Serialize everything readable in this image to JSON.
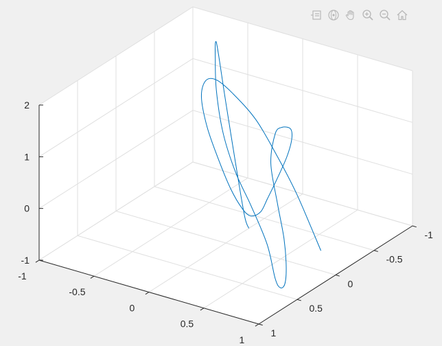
{
  "toolbar": {
    "buttons": [
      {
        "name": "data-tips-icon"
      },
      {
        "name": "rotate-3d-icon"
      },
      {
        "name": "pan-hand-icon"
      },
      {
        "name": "zoom-in-icon"
      },
      {
        "name": "zoom-out-icon"
      },
      {
        "name": "restore-view-home-icon"
      }
    ]
  },
  "colors": {
    "background": "#f0f0f0",
    "plot_area": "#ffffff",
    "grid": "#dfdfdf",
    "axis": "#262626",
    "line": "#0072bd"
  },
  "chart_data": {
    "type": "line",
    "dimensions": 3,
    "title": "",
    "xlabel": "",
    "ylabel": "",
    "zlabel": "",
    "grid": true,
    "box": true,
    "xlim": [
      -1,
      1
    ],
    "ylim": [
      -1,
      1
    ],
    "zlim": [
      -1,
      2
    ],
    "x_ticks": [
      -1,
      -0.5,
      0,
      0.5,
      1
    ],
    "x_tick_labels": [
      "-1",
      "-0.5",
      "0",
      "0.5",
      "1"
    ],
    "y_ticks": [
      -1,
      -0.5,
      0,
      0.5,
      1
    ],
    "y_tick_labels": [
      "-1",
      "-0.5",
      "0",
      "0.5",
      "1"
    ],
    "z_ticks": [
      -1,
      0,
      1,
      2
    ],
    "z_tick_labels": [
      "-1",
      "0",
      "1",
      "2"
    ],
    "series": [
      {
        "points": [
          [
            0.67,
            -0.28,
            -1.0
          ],
          [
            0.58,
            -0.28,
            -0.6
          ],
          [
            0.45,
            -0.27,
            0.0
          ],
          [
            0.3,
            -0.25,
            0.6
          ],
          [
            0.15,
            -0.18,
            1.3
          ],
          [
            0.02,
            -0.06,
            1.85
          ],
          [
            -0.05,
            0.05,
            2.17
          ],
          [
            -0.07,
            0.16,
            2.25
          ],
          [
            -0.04,
            0.26,
            2.05
          ],
          [
            0.06,
            0.33,
            1.6
          ],
          [
            0.18,
            0.36,
            1.1
          ],
          [
            0.3,
            0.37,
            0.6
          ],
          [
            0.4,
            0.36,
            0.26
          ],
          [
            0.46,
            0.33,
            0.12
          ],
          [
            0.5,
            0.26,
            0.16
          ],
          [
            0.47,
            0.13,
            0.27
          ],
          [
            0.43,
            -0.05,
            0.45
          ],
          [
            0.38,
            -0.25,
            0.66
          ],
          [
            0.32,
            -0.4,
            0.82
          ],
          [
            0.24,
            -0.5,
            0.88
          ],
          [
            0.14,
            -0.53,
            0.82
          ],
          [
            0.1,
            -0.5,
            0.7
          ],
          [
            0.2,
            -0.3,
            0.38
          ],
          [
            0.4,
            -0.1,
            -0.08
          ],
          [
            0.6,
            0.1,
            -0.45
          ],
          [
            0.76,
            0.3,
            -0.7
          ],
          [
            0.86,
            0.46,
            -0.82
          ],
          [
            0.86,
            0.52,
            -0.84
          ],
          [
            0.8,
            0.5,
            -0.72
          ],
          [
            0.6,
            0.32,
            -0.35
          ],
          [
            0.3,
            0.1,
            0.0
          ],
          [
            0.02,
            -0.1,
            0.28
          ],
          [
            -0.22,
            -0.28,
            0.72
          ],
          [
            -0.38,
            -0.42,
            1.32
          ],
          [
            -0.46,
            -0.52,
            1.82
          ],
          [
            -0.5,
            -0.58,
            2.02
          ],
          [
            -0.48,
            -0.58,
            1.9
          ],
          [
            -0.38,
            -0.54,
            1.0
          ],
          [
            -0.22,
            -0.46,
            -0.2
          ],
          [
            -0.08,
            -0.36,
            -0.88
          ],
          [
            0.0,
            -0.3,
            -1.0
          ]
        ]
      }
    ]
  }
}
